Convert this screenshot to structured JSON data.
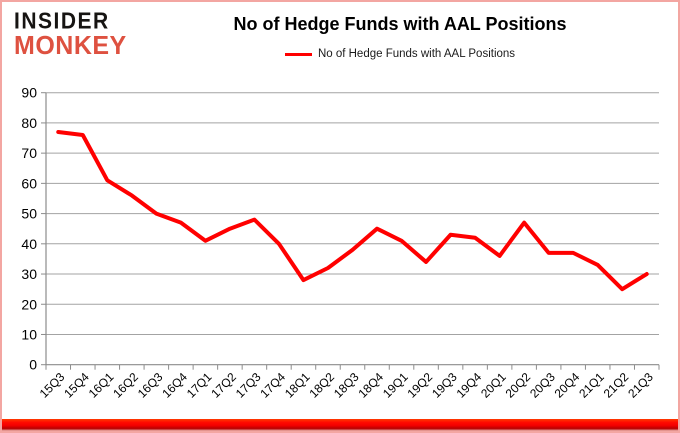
{
  "logo": {
    "line1": "INSIDER",
    "line2": "MONKEY",
    "line1_color": "#161412",
    "line2_color": "#de5140"
  },
  "title": "No of Hedge Funds with AAL Positions",
  "legend": {
    "label": "No of Hedge Funds with AAL Positions",
    "color": "#ff0000"
  },
  "chart_data": {
    "type": "line",
    "title": "No of Hedge Funds with AAL Positions",
    "categories": [
      "15Q3",
      "15Q4",
      "16Q1",
      "16Q2",
      "16Q3",
      "16Q4",
      "17Q1",
      "17Q2",
      "17Q3",
      "17Q4",
      "18Q1",
      "18Q2",
      "18Q3",
      "18Q4",
      "19Q1",
      "19Q2",
      "19Q3",
      "19Q4",
      "20Q1",
      "20Q2",
      "20Q3",
      "20Q4",
      "21Q1",
      "21Q2",
      "21Q3"
    ],
    "series": [
      {
        "name": "No of Hedge Funds with AAL Positions",
        "color": "#ff0000",
        "values": [
          77,
          76,
          61,
          56,
          50,
          47,
          41,
          45,
          48,
          40,
          28,
          32,
          38,
          45,
          41,
          34,
          43,
          42,
          36,
          47,
          37,
          37,
          33,
          25,
          30
        ]
      }
    ],
    "xlabel": "",
    "ylabel": "",
    "ylim": [
      0,
      90
    ],
    "ytick_interval": 10,
    "grid": true,
    "legend_position": "top-center",
    "x_tick_style": "between-categories, labels rotated 45deg"
  },
  "style": {
    "gridline_color": "#a3a3a3",
    "axis_color": "#8c8c8c",
    "tick_color": "#8c8c8c",
    "label_color": "#000000",
    "border_color": "#f3a6a2",
    "line_width": 4
  }
}
